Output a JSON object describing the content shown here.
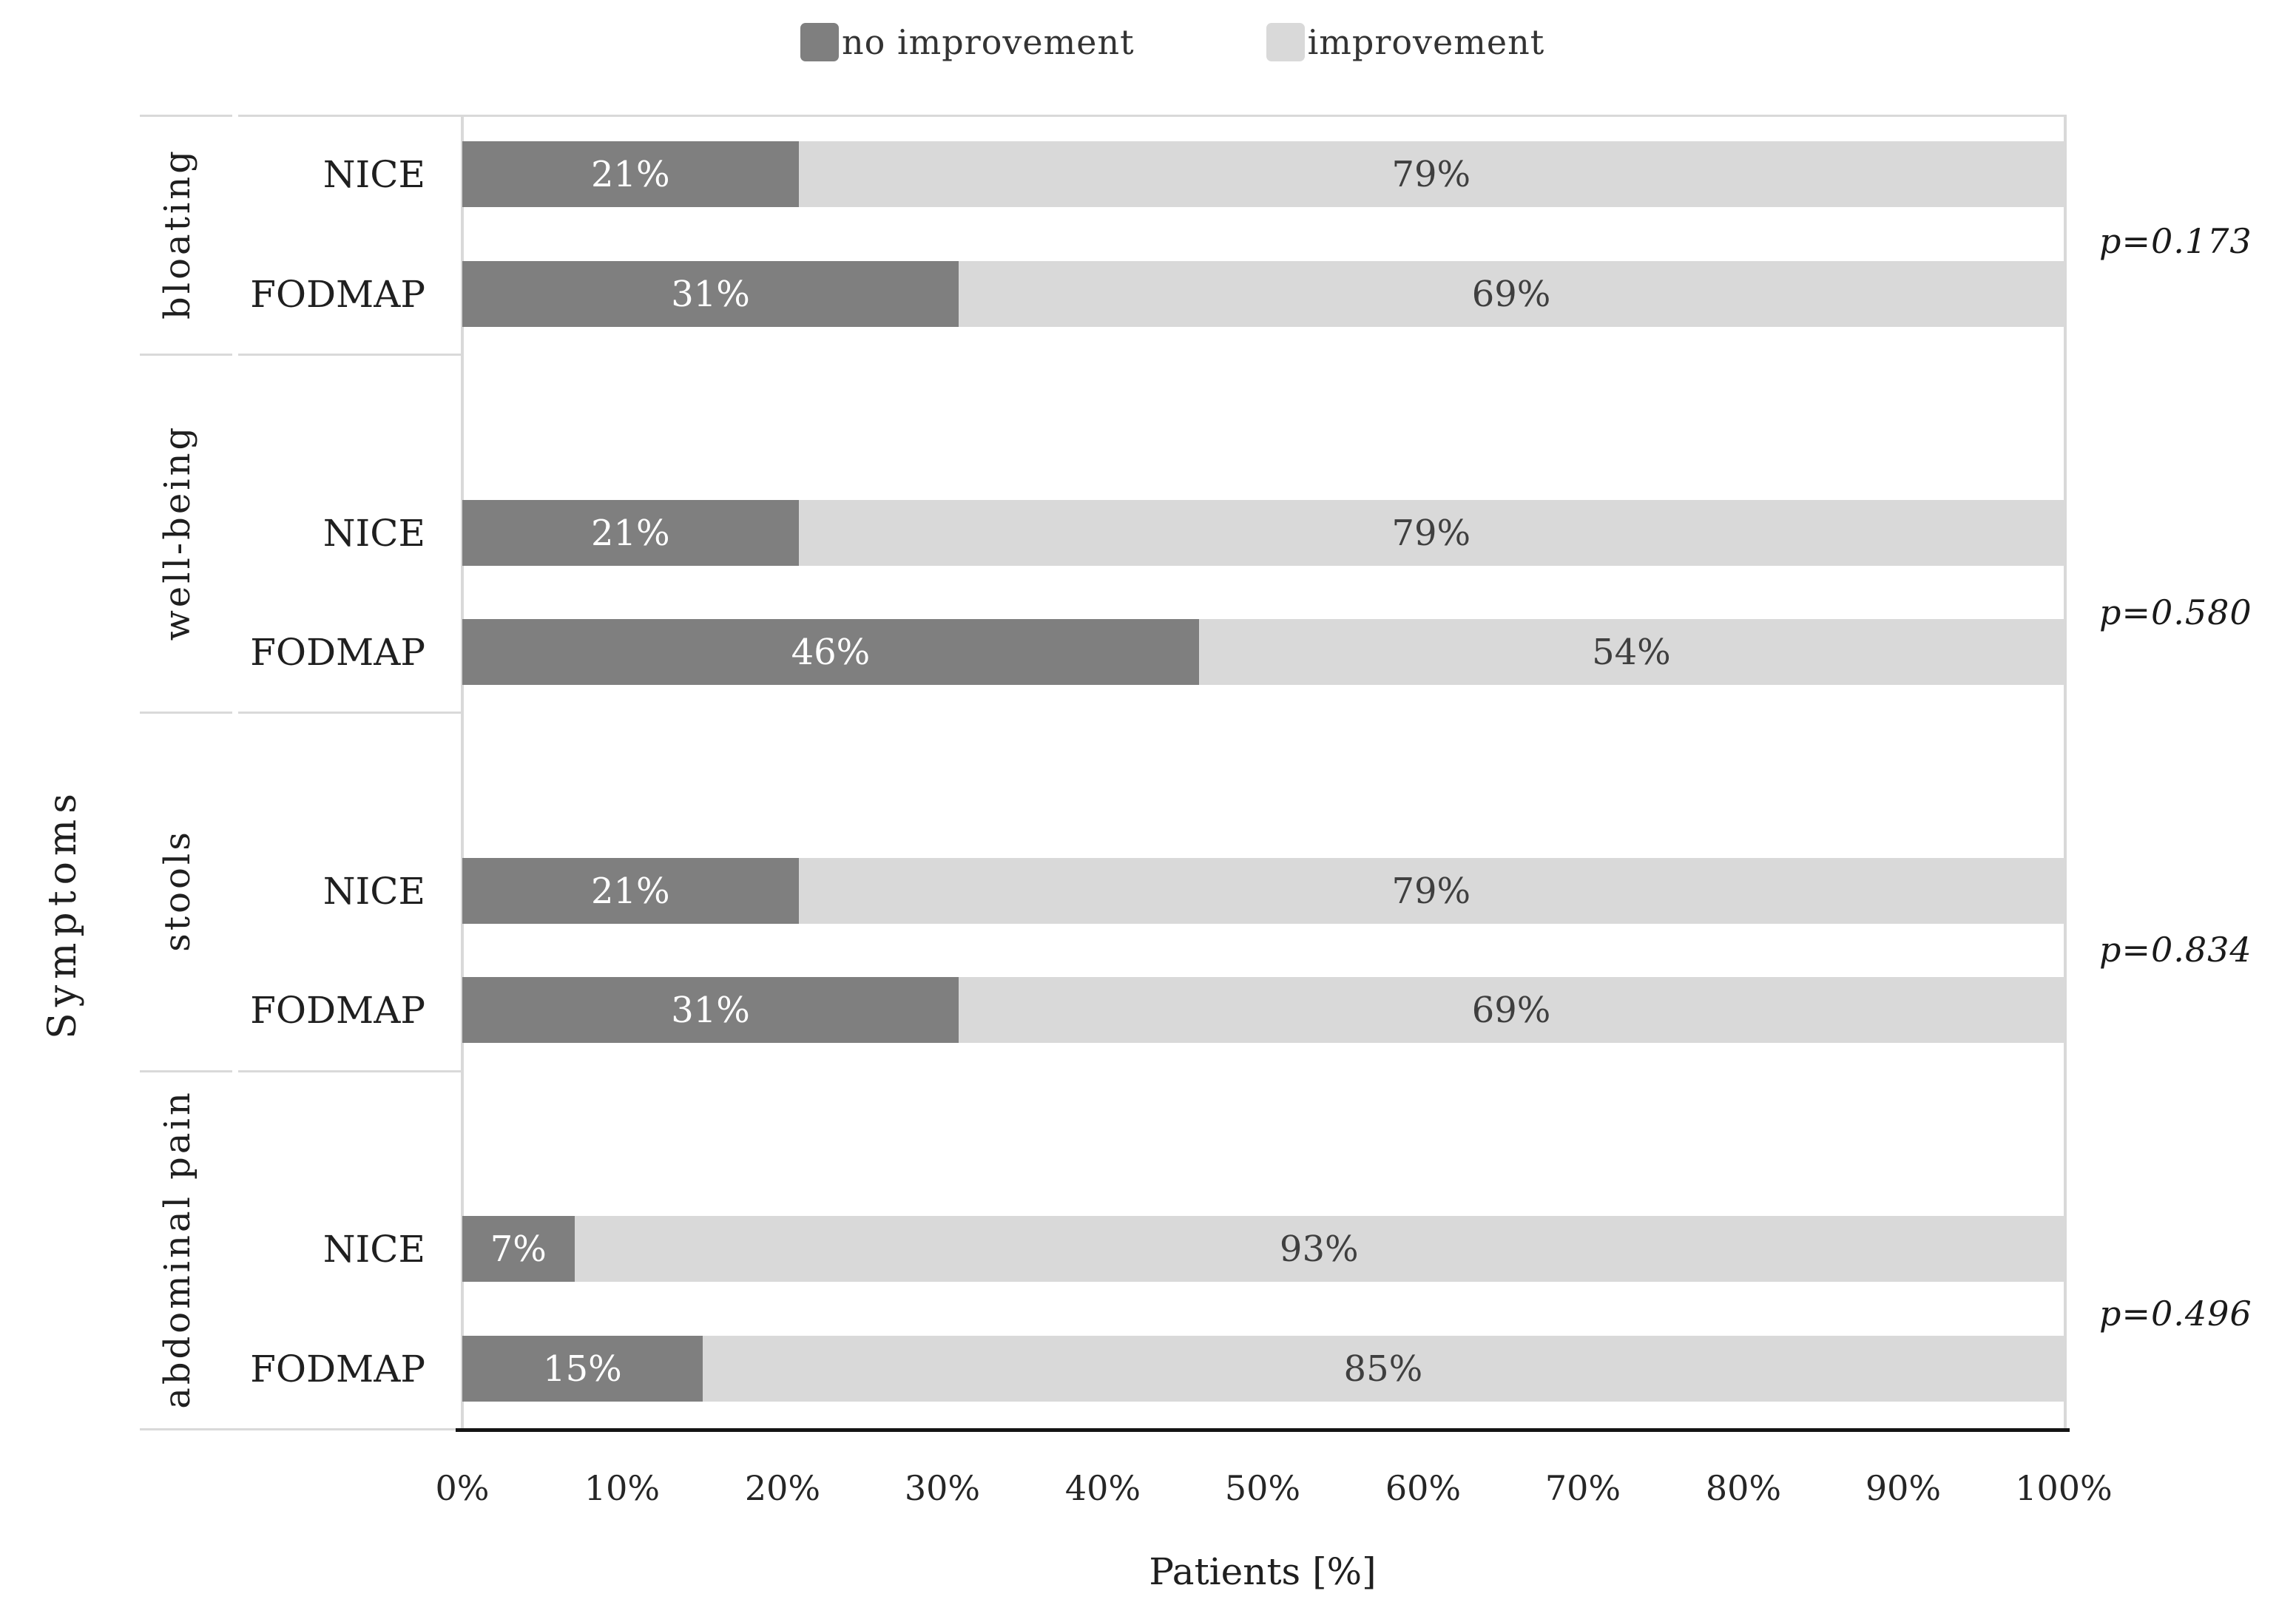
{
  "legend": {
    "items": [
      {
        "label": "no improvement",
        "color": "#7f7f7f"
      },
      {
        "label": "improvement",
        "color": "#d9d9d9"
      }
    ]
  },
  "chart_data": {
    "type": "bar",
    "stacked": true,
    "orientation": "horizontal",
    "series": [
      "no improvement",
      "improvement"
    ],
    "colors": {
      "no_improvement": "#7f7f7f",
      "improvement": "#d9d9d9"
    },
    "x_axis": {
      "title": "Patients [%]",
      "min": 0,
      "max": 100,
      "ticks": [
        "0%",
        "10%",
        "20%",
        "30%",
        "40%",
        "50%",
        "60%",
        "70%",
        "80%",
        "90%",
        "100%"
      ]
    },
    "y_axis": {
      "title": "Symptoms",
      "categories": [
        "bloating",
        "well-being",
        "stools",
        "abdominal pain"
      ]
    },
    "grid": "off",
    "legend_position": "top",
    "groups": [
      {
        "symptom": "bloating",
        "p_value": "p=0.173",
        "rows": [
          {
            "diet": "NICE",
            "no_improvement": 21,
            "improvement": 79
          },
          {
            "diet": "FODMAP",
            "no_improvement": 31,
            "improvement": 69
          }
        ]
      },
      {
        "symptom": "well-being",
        "p_value": "p=0.580",
        "rows": [
          {
            "diet": "NICE",
            "no_improvement": 21,
            "improvement": 79
          },
          {
            "diet": "FODMAP",
            "no_improvement": 46,
            "improvement": 54
          }
        ]
      },
      {
        "symptom": "stools",
        "p_value": "p=0.834",
        "rows": [
          {
            "diet": "NICE",
            "no_improvement": 21,
            "improvement": 79
          },
          {
            "diet": "FODMAP",
            "no_improvement": 31,
            "improvement": 69
          }
        ]
      },
      {
        "symptom": "abdominal pain",
        "p_value": "p=0.496",
        "rows": [
          {
            "diet": "NICE",
            "no_improvement": 7,
            "improvement": 93
          },
          {
            "diet": "FODMAP",
            "no_improvement": 15,
            "improvement": 85
          }
        ]
      }
    ]
  }
}
